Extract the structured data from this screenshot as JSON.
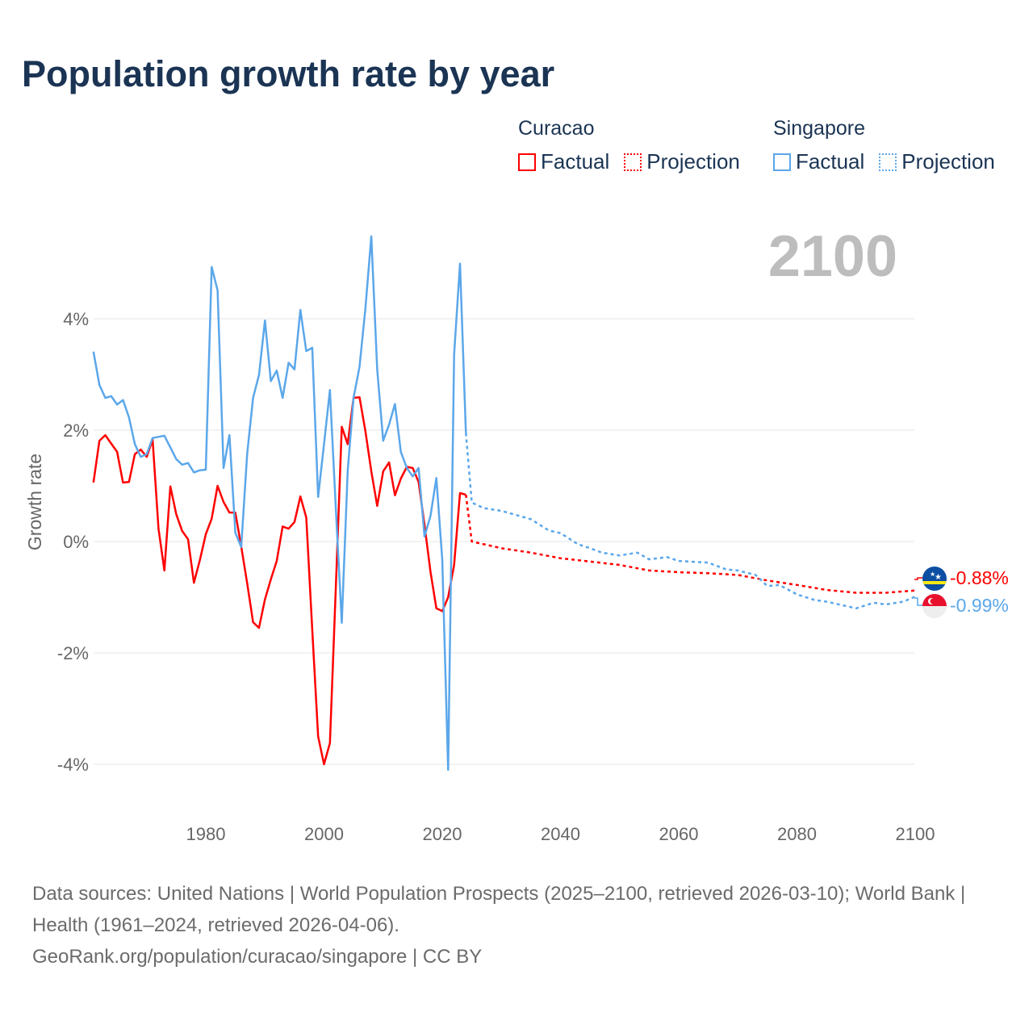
{
  "title": "Population growth rate by year",
  "legend": {
    "groups": [
      {
        "name": "Curacao",
        "factual": "Factual",
        "projection": "Projection",
        "color": "#ff0000"
      },
      {
        "name": "Singapore",
        "factual": "Factual",
        "projection": "Projection",
        "color": "#5ba7ea"
      }
    ]
  },
  "year_watermark": "2100",
  "end_labels": {
    "curacao": "-0.88%",
    "singapore": "-0.99%"
  },
  "sources": {
    "line1": "Data sources: United Nations | World Population Prospects (2025–2100, retrieved 2026-03-10); World Bank | Health (1961–2024, retrieved 2026-04-06).",
    "line2": "GeoRank.org/population/curacao/singapore | CC BY"
  },
  "chart_data": {
    "type": "line",
    "title": "Population growth rate by year",
    "xlabel": "",
    "ylabel": "Growth rate",
    "xlim": [
      1961,
      2100
    ],
    "ylim": [
      -5,
      5.6
    ],
    "xticks": [
      1980,
      2000,
      2020,
      2040,
      2060,
      2080,
      2100
    ],
    "yticks": [
      4,
      2,
      0,
      -2,
      -4
    ],
    "ytick_labels": [
      "4%",
      "2%",
      "0%",
      "-2%",
      "-4%"
    ],
    "grid": true,
    "legend_position": "top-right",
    "series": [
      {
        "name": "Curacao",
        "kind": "Factual",
        "color": "#ff0000",
        "x": [
          1961,
          1962,
          1963,
          1964,
          1965,
          1966,
          1967,
          1968,
          1969,
          1970,
          1971,
          1972,
          1973,
          1974,
          1975,
          1976,
          1977,
          1978,
          1979,
          1980,
          1981,
          1982,
          1983,
          1984,
          1985,
          1986,
          1987,
          1988,
          1989,
          1990,
          1991,
          1992,
          1993,
          1994,
          1995,
          1996,
          1997,
          1998,
          1999,
          2000,
          2001,
          2002,
          2003,
          2004,
          2005,
          2006,
          2007,
          2008,
          2009,
          2010,
          2011,
          2012,
          2013,
          2014,
          2015,
          2016,
          2017,
          2018,
          2019,
          2020,
          2021,
          2022,
          2023,
          2024
        ],
        "y": [
          1.06,
          1.81,
          1.91,
          1.76,
          1.61,
          1.06,
          1.07,
          1.57,
          1.65,
          1.52,
          1.83,
          0.23,
          -0.52,
          0.99,
          0.49,
          0.19,
          0.04,
          -0.74,
          -0.33,
          0.13,
          0.41,
          1.0,
          0.71,
          0.52,
          0.52,
          -0.09,
          -0.75,
          -1.45,
          -1.55,
          -1.04,
          -0.68,
          -0.35,
          0.27,
          0.23,
          0.35,
          0.81,
          0.43,
          -1.58,
          -3.5,
          -4.0,
          -3.62,
          -0.83,
          2.06,
          1.75,
          2.58,
          2.59,
          1.98,
          1.26,
          0.64,
          1.26,
          1.42,
          0.83,
          1.13,
          1.34,
          1.32,
          1.07,
          0.3,
          -0.54,
          -1.2,
          -1.25,
          -1.0,
          -0.42,
          0.87,
          0.84
        ]
      },
      {
        "name": "Curacao",
        "kind": "Projection",
        "color": "#ff0000",
        "x": [
          2024,
          2025,
          2030,
          2035,
          2040,
          2045,
          2050,
          2055,
          2060,
          2065,
          2070,
          2075,
          2080,
          2085,
          2090,
          2095,
          2100
        ],
        "y": [
          0.84,
          0.0,
          -0.12,
          -0.2,
          -0.3,
          -0.36,
          -0.42,
          -0.52,
          -0.55,
          -0.57,
          -0.6,
          -0.7,
          -0.78,
          -0.87,
          -0.92,
          -0.92,
          -0.88
        ]
      },
      {
        "name": "Singapore",
        "kind": "Factual",
        "color": "#5ba7ea",
        "x": [
          1961,
          1962,
          1963,
          1964,
          1965,
          1966,
          1967,
          1968,
          1969,
          1970,
          1971,
          1972,
          1973,
          1974,
          1975,
          1976,
          1977,
          1978,
          1979,
          1980,
          1981,
          1982,
          1983,
          1984,
          1985,
          1986,
          1987,
          1988,
          1989,
          1990,
          1991,
          1992,
          1993,
          1994,
          1995,
          1996,
          1997,
          1998,
          1999,
          2000,
          2001,
          2002,
          2003,
          2004,
          2005,
          2006,
          2007,
          2008,
          2009,
          2010,
          2011,
          2012,
          2013,
          2014,
          2015,
          2016,
          2017,
          2018,
          2019,
          2020,
          2021,
          2022,
          2023,
          2024
        ],
        "y": [
          3.41,
          2.81,
          2.58,
          2.61,
          2.46,
          2.54,
          2.23,
          1.75,
          1.52,
          1.57,
          1.86,
          1.88,
          1.9,
          1.69,
          1.48,
          1.38,
          1.41,
          1.24,
          1.28,
          1.29,
          4.93,
          4.51,
          1.32,
          1.91,
          0.16,
          -0.1,
          1.58,
          2.58,
          2.99,
          3.97,
          2.88,
          3.07,
          2.58,
          3.21,
          3.09,
          4.16,
          3.42,
          3.48,
          0.8,
          1.75,
          2.72,
          0.6,
          -1.46,
          1.26,
          2.58,
          3.14,
          4.19,
          5.48,
          3.09,
          1.81,
          2.1,
          2.47,
          1.61,
          1.32,
          1.17,
          1.32,
          0.09,
          0.46,
          1.14,
          -0.32,
          -4.1,
          3.36,
          4.99,
          1.95
        ]
      },
      {
        "name": "Singapore",
        "kind": "Projection",
        "color": "#5ba7ea",
        "x": [
          2024,
          2025,
          2027,
          2030,
          2035,
          2038,
          2040,
          2043,
          2045,
          2047,
          2050,
          2053,
          2055,
          2058,
          2060,
          2065,
          2068,
          2070,
          2073,
          2075,
          2077,
          2080,
          2083,
          2085,
          2088,
          2090,
          2093,
          2095,
          2098,
          2100
        ],
        "y": [
          1.95,
          0.7,
          0.6,
          0.55,
          0.4,
          0.2,
          0.15,
          -0.05,
          -0.12,
          -0.2,
          -0.25,
          -0.2,
          -0.32,
          -0.28,
          -0.35,
          -0.38,
          -0.5,
          -0.52,
          -0.6,
          -0.8,
          -0.78,
          -0.95,
          -1.05,
          -1.08,
          -1.15,
          -1.2,
          -1.1,
          -1.13,
          -1.08,
          -0.99
        ]
      }
    ]
  }
}
